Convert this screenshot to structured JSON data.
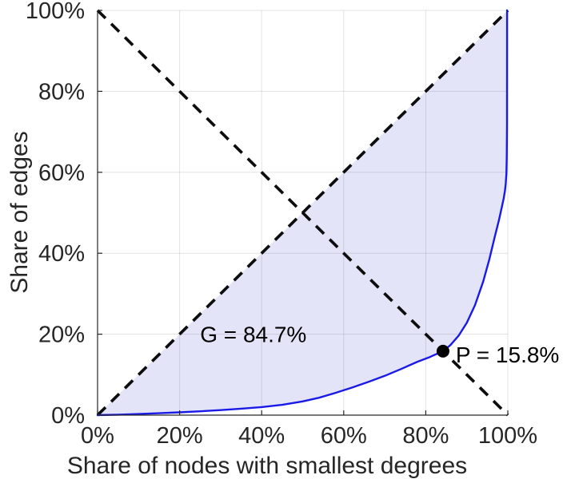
{
  "figure": {
    "background": "#ffffff"
  },
  "chart_data": {
    "type": "line",
    "title": "",
    "xlabel": "Share of nodes with smallest degrees",
    "ylabel": "Share of edges",
    "xlim": [
      0,
      100
    ],
    "ylim": [
      0,
      100
    ],
    "grid": true,
    "x_tick_labels": [
      "0%",
      "20%",
      "40%",
      "60%",
      "80%",
      "100%"
    ],
    "y_tick_labels": [
      "0%",
      "20%",
      "40%",
      "60%",
      "80%",
      "100%"
    ],
    "x_tick_values": [
      0,
      20,
      40,
      60,
      80,
      100
    ],
    "y_tick_values": [
      0,
      20,
      40,
      60,
      80,
      100
    ],
    "colors": {
      "lorenz_curve": "#1a1ae8",
      "fill_region": "#e4e4f8",
      "dashed_lines": "#0d0d0d",
      "gridline": "rgba(38,38,38,0.13)",
      "axis_line": "#262626",
      "marker": "#000000"
    },
    "series": [
      {
        "name": "lorenz-curve",
        "style": "solid",
        "points": [
          [
            0,
            0
          ],
          [
            5,
            0.12
          ],
          [
            10,
            0.28
          ],
          [
            15,
            0.48
          ],
          [
            20,
            0.7
          ],
          [
            25,
            0.95
          ],
          [
            30,
            1.25
          ],
          [
            35,
            1.6
          ],
          [
            40,
            2.0
          ],
          [
            45,
            2.55
          ],
          [
            50,
            3.4
          ],
          [
            54,
            4.3
          ],
          [
            58,
            5.5
          ],
          [
            62,
            6.8
          ],
          [
            66,
            8.2
          ],
          [
            70,
            9.7
          ],
          [
            74,
            11.4
          ],
          [
            78,
            13.2
          ],
          [
            81,
            14.35
          ],
          [
            84.2,
            15.8
          ],
          [
            86,
            17.3
          ],
          [
            88,
            19.6
          ],
          [
            90,
            22.8
          ],
          [
            92,
            27.2
          ],
          [
            94,
            33.0
          ],
          [
            95.5,
            38.5
          ],
          [
            96.8,
            44.0
          ],
          [
            97.8,
            48.0
          ],
          [
            98.5,
            51.2
          ],
          [
            99.0,
            53.6
          ],
          [
            99.3,
            55.4
          ],
          [
            99.5,
            57.2
          ],
          [
            99.65,
            59.6
          ],
          [
            99.75,
            64.0
          ],
          [
            99.8,
            72.0
          ],
          [
            99.82,
            100
          ]
        ]
      },
      {
        "name": "equality-diagonal",
        "style": "dashed",
        "points": [
          [
            0,
            0
          ],
          [
            100,
            100
          ]
        ]
      },
      {
        "name": "anti-diagonal",
        "style": "dashed",
        "points": [
          [
            0,
            100
          ],
          [
            100,
            0
          ]
        ]
      }
    ],
    "fill_between": "equality-diagonal and lorenz-curve",
    "annotations": [
      {
        "id": "gini",
        "text": "G = 84.7%",
        "x": 25.0,
        "y": 20.0,
        "anchor": "start"
      },
      {
        "id": "p-label",
        "text": "P = 15.8%",
        "x": 87.3,
        "y": 15.0,
        "anchor": "start"
      },
      {
        "id": "p-marker",
        "type": "point",
        "x": 84.2,
        "y": 15.8,
        "radius": 8
      }
    ]
  }
}
